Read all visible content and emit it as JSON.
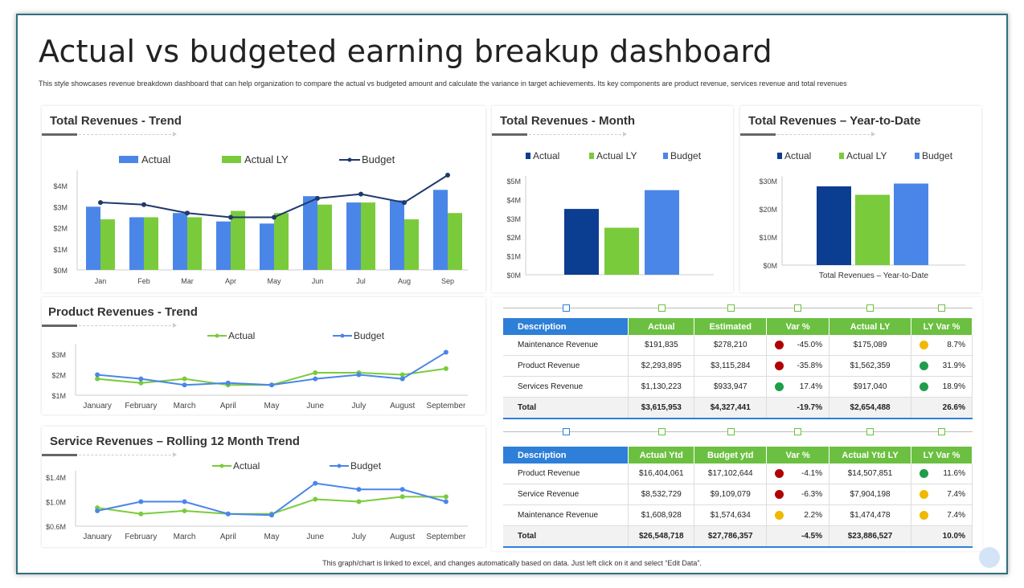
{
  "header": {
    "title": "Actual vs budgeted earning breakup dashboard",
    "subtitle": "This style showcases revenue breakdown dashboard that can help organization to compare the actual vs budgeted amount and calculate the variance in target achievements. Its key components are product revenue, services revenue and total revenues",
    "footer": "This graph/chart is linked to excel, and changes automatically based on data. Just left click on it and select “Edit Data”."
  },
  "colors": {
    "actual": "#4a86e8",
    "actual_ly": "#7acb3c",
    "budget_line": "#1f3a6b",
    "month_actual": "#0b3d91",
    "month_budget": "#4a86e8",
    "header_blue": "#2e7fd8",
    "header_green": "#6cc041",
    "status_red": "#b00000",
    "status_green": "#1f9e4a",
    "status_yellow": "#f0b800"
  },
  "chart_data": [
    {
      "id": "trend",
      "type": "bar",
      "title": "Total Revenues - Trend",
      "categories": [
        "Jan",
        "Feb",
        "Mar",
        "Apr",
        "May",
        "Jun",
        "Jul",
        "Aug",
        "Sep"
      ],
      "series": [
        {
          "name": "Actual",
          "type": "bar",
          "values": [
            3.0,
            2.5,
            2.7,
            2.3,
            2.2,
            3.5,
            3.2,
            3.3,
            3.8
          ]
        },
        {
          "name": "Actual LY",
          "type": "bar",
          "values": [
            2.4,
            2.5,
            2.5,
            2.8,
            2.7,
            3.1,
            3.2,
            2.4,
            2.7
          ]
        },
        {
          "name": "Budget",
          "type": "line",
          "values": [
            3.2,
            3.1,
            2.7,
            2.5,
            2.5,
            3.4,
            3.6,
            3.2,
            4.5
          ]
        }
      ],
      "yticks": [
        "$0M",
        "$1M",
        "$2M",
        "$3M",
        "$4M"
      ],
      "ylim": [
        0,
        4.5
      ]
    },
    {
      "id": "month",
      "type": "bar",
      "title": "Total Revenues - Month",
      "categories": [
        ""
      ],
      "series": [
        {
          "name": "Actual",
          "values": [
            3.5
          ]
        },
        {
          "name": "Actual LY",
          "values": [
            2.5
          ]
        },
        {
          "name": "Budget",
          "values": [
            4.5
          ]
        }
      ],
      "yticks": [
        "$0M",
        "$1M",
        "$2M",
        "$3M",
        "$4M",
        "$5M"
      ],
      "ylim": [
        0,
        5
      ]
    },
    {
      "id": "ytd",
      "type": "bar",
      "title": "Total Revenues – Year-to-Date",
      "categories": [
        "Total Revenues – Year-to-Date"
      ],
      "series": [
        {
          "name": "Actual",
          "values": [
            28
          ]
        },
        {
          "name": "Actual LY",
          "values": [
            25
          ]
        },
        {
          "name": "Budget",
          "values": [
            29
          ]
        }
      ],
      "yticks": [
        "$0M",
        "$10M",
        "$20M",
        "$30M"
      ],
      "ylim": [
        0,
        30
      ]
    },
    {
      "id": "product",
      "type": "line",
      "title": "Product Revenues - Trend",
      "categories": [
        "January",
        "February",
        "March",
        "April",
        "May",
        "June",
        "July",
        "August",
        "September"
      ],
      "series": [
        {
          "name": "Actual",
          "values": [
            1.8,
            1.6,
            1.8,
            1.5,
            1.5,
            2.1,
            2.1,
            2.0,
            2.3
          ]
        },
        {
          "name": "Budget",
          "values": [
            2.0,
            1.8,
            1.5,
            1.6,
            1.5,
            1.8,
            2.0,
            1.8,
            3.1
          ]
        }
      ],
      "yticks": [
        "$1M",
        "$2M",
        "$3M"
      ],
      "ylim": [
        1,
        3.2
      ]
    },
    {
      "id": "service",
      "type": "line",
      "title": "Service Revenues – Rolling 12 Month Trend",
      "categories": [
        "January",
        "February",
        "March",
        "April",
        "May",
        "June",
        "July",
        "August",
        "September"
      ],
      "series": [
        {
          "name": "Actual",
          "values": [
            0.9,
            0.8,
            0.85,
            0.8,
            0.8,
            1.04,
            1.0,
            1.08,
            1.08
          ]
        },
        {
          "name": "Budget",
          "values": [
            0.85,
            1.0,
            1.0,
            0.8,
            0.78,
            1.3,
            1.2,
            1.2,
            1.0
          ]
        }
      ],
      "yticks": [
        "$0.6M",
        "$1.0M",
        "$1.4M"
      ],
      "ylim": [
        0.6,
        1.4
      ]
    }
  ],
  "table1": {
    "headers": [
      "Description",
      "Actual",
      "Estimated",
      "Var %",
      "Actual LY",
      "LY Var %"
    ],
    "rows": [
      {
        "desc": "Maintenance Revenue",
        "actual": "$191,835",
        "est": "$278,210",
        "var": "-45.0%",
        "var_status": "red",
        "ly": "$175,089",
        "lyvar": "8.7%",
        "lyvar_status": "yellow"
      },
      {
        "desc": "Product Revenue",
        "actual": "$2,293,895",
        "est": "$3,115,284",
        "var": "-35.8%",
        "var_status": "red",
        "ly": "$1,562,359",
        "lyvar": "31.9%",
        "lyvar_status": "green"
      },
      {
        "desc": "Services Revenue",
        "actual": "$1,130,223",
        "est": "$933,947",
        "var": "17.4%",
        "var_status": "green",
        "ly": "$917,040",
        "lyvar": "18.9%",
        "lyvar_status": "green"
      }
    ],
    "total": {
      "desc": "Total",
      "actual": "$3,615,953",
      "est": "$4,327,441",
      "var": "-19.7%",
      "ly": "$2,654,488",
      "lyvar": "26.6%"
    }
  },
  "table2": {
    "headers": [
      "Description",
      "Actual Ytd",
      "Budget ytd",
      "Var %",
      "Actual Ytd LY",
      "LY Var %"
    ],
    "rows": [
      {
        "desc": "Product Revenue",
        "actual": "$16,404,061",
        "est": "$17,102,644",
        "var": "-4.1%",
        "var_status": "red",
        "ly": "$14,507,851",
        "lyvar": "11.6%",
        "lyvar_status": "green"
      },
      {
        "desc": "Service Revenue",
        "actual": "$8,532,729",
        "est": "$9,109,079",
        "var": "-6.3%",
        "var_status": "red",
        "ly": "$7,904,198",
        "lyvar": "7.4%",
        "lyvar_status": "yellow"
      },
      {
        "desc": "Maintenance Revenue",
        "actual": "$1,608,928",
        "est": "$1,574,634",
        "var": "2.2%",
        "var_status": "yellow",
        "ly": "$1,474,478",
        "lyvar": "7.4%",
        "lyvar_status": "yellow"
      }
    ],
    "total": {
      "desc": "Total",
      "actual": "$26,548,718",
      "est": "$27,786,357",
      "var": "-4.5%",
      "ly": "$23,886,527",
      "lyvar": "10.0%"
    }
  }
}
